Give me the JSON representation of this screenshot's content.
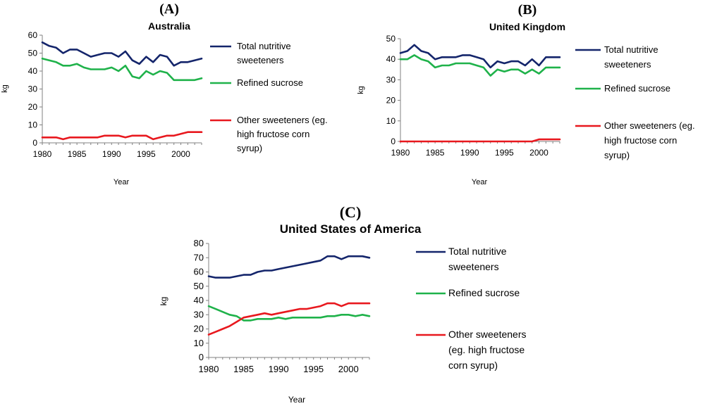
{
  "figure": {
    "panels": [
      {
        "letter_open": "(",
        "letter": "A",
        "letter_close": ")"
      },
      {
        "letter_open": "(",
        "letter": "B",
        "letter_close": ")"
      },
      {
        "letter_open": "(",
        "letter": "C",
        "letter_close": ")"
      }
    ]
  },
  "chart_data": [
    {
      "type": "line",
      "title": "Australia",
      "xlabel": "Year",
      "ylabel": "kg",
      "xlim": [
        1980,
        2003
      ],
      "ylim": [
        0,
        60
      ],
      "yticks": [
        0,
        10,
        20,
        30,
        40,
        50,
        60
      ],
      "xticks": [
        1980,
        1985,
        1990,
        1995,
        2000
      ],
      "x": [
        1980,
        1981,
        1982,
        1983,
        1984,
        1985,
        1986,
        1987,
        1988,
        1989,
        1990,
        1991,
        1992,
        1993,
        1994,
        1995,
        1996,
        1997,
        1998,
        1999,
        2000,
        2001,
        2002,
        2003
      ],
      "series": [
        {
          "name": "Total nutritive sweeteners",
          "legend_lines": [
            "Total nutritive",
            "sweeteners"
          ],
          "color": "#14256b",
          "values": [
            56,
            54,
            53,
            50,
            52,
            52,
            50,
            48,
            49,
            50,
            50,
            48,
            51,
            46,
            44,
            48,
            45,
            49,
            48,
            43,
            45,
            45,
            46,
            47
          ]
        },
        {
          "name": "Refined sucrose",
          "legend_lines": [
            "Refined sucrose"
          ],
          "color": "#1fb24a",
          "values": [
            47,
            46,
            45,
            43,
            43,
            44,
            42,
            41,
            41,
            41,
            42,
            40,
            43,
            37,
            36,
            40,
            38,
            40,
            39,
            35,
            35,
            35,
            35,
            36
          ]
        },
        {
          "name": "Other sweeteners (eg. high fructose corn syrup)",
          "legend_lines": [
            "Other sweeteners (eg.",
            "high fructose corn",
            "syrup)"
          ],
          "color": "#e8181e",
          "values": [
            3,
            3,
            3,
            2,
            3,
            3,
            3,
            3,
            3,
            4,
            4,
            4,
            3,
            4,
            4,
            4,
            2,
            3,
            4,
            4,
            5,
            6,
            6,
            6
          ]
        }
      ]
    },
    {
      "type": "line",
      "title": "United Kingdom",
      "xlabel": "Year",
      "ylabel": "kg",
      "xlim": [
        1980,
        2003
      ],
      "ylim": [
        0,
        50
      ],
      "yticks": [
        0,
        10,
        20,
        30,
        40,
        50
      ],
      "xticks": [
        1980,
        1985,
        1990,
        1995,
        2000
      ],
      "x": [
        1980,
        1981,
        1982,
        1983,
        1984,
        1985,
        1986,
        1987,
        1988,
        1989,
        1990,
        1991,
        1992,
        1993,
        1994,
        1995,
        1996,
        1997,
        1998,
        1999,
        2000,
        2001,
        2002,
        2003
      ],
      "series": [
        {
          "name": "Total nutritive sweeteners",
          "legend_lines": [
            "Total nutritive",
            "sweeteners"
          ],
          "color": "#14256b",
          "values": [
            43,
            44,
            47,
            44,
            43,
            40,
            41,
            41,
            41,
            42,
            42,
            41,
            40,
            36,
            39,
            38,
            39,
            39,
            37,
            40,
            37,
            41,
            41,
            41
          ]
        },
        {
          "name": "Refined sucrose",
          "legend_lines": [
            "Refined sucrose"
          ],
          "color": "#1fb24a",
          "values": [
            40,
            40,
            42,
            40,
            39,
            36,
            37,
            37,
            38,
            38,
            38,
            37,
            36,
            32,
            35,
            34,
            35,
            35,
            33,
            35,
            33,
            36,
            36,
            36
          ]
        },
        {
          "name": "Other sweeteners (eg. high fructose corn syrup)",
          "legend_lines": [
            "Other sweeteners (eg.",
            "high fructose corn",
            "syrup)"
          ],
          "color": "#e8181e",
          "values": [
            0,
            0,
            0,
            0,
            0,
            0,
            0,
            0,
            0,
            0,
            0,
            0,
            0,
            0,
            0,
            0,
            0,
            0,
            0,
            0,
            1,
            1,
            1,
            1
          ]
        }
      ]
    },
    {
      "type": "line",
      "title": "United States of America",
      "xlabel": "Year",
      "ylabel": "kg",
      "xlim": [
        1980,
        2003
      ],
      "ylim": [
        0,
        80
      ],
      "yticks": [
        0,
        10,
        20,
        30,
        40,
        50,
        60,
        70,
        80
      ],
      "xticks": [
        1980,
        1985,
        1990,
        1995,
        2000
      ],
      "x": [
        1980,
        1981,
        1982,
        1983,
        1984,
        1985,
        1986,
        1987,
        1988,
        1989,
        1990,
        1991,
        1992,
        1993,
        1994,
        1995,
        1996,
        1997,
        1998,
        1999,
        2000,
        2001,
        2002,
        2003
      ],
      "series": [
        {
          "name": "Total nutritive sweeteners",
          "legend_lines": [
            "Total nutritive",
            "sweeteners"
          ],
          "color": "#14256b",
          "values": [
            57,
            56,
            56,
            56,
            57,
            58,
            58,
            60,
            61,
            61,
            62,
            63,
            64,
            65,
            66,
            67,
            68,
            71,
            71,
            69,
            71,
            71,
            71,
            70
          ]
        },
        {
          "name": "Refined sucrose",
          "legend_lines": [
            "Refined sucrose"
          ],
          "color": "#1fb24a",
          "values": [
            36,
            34,
            32,
            30,
            29,
            26,
            26,
            27,
            27,
            27,
            28,
            27,
            28,
            28,
            28,
            28,
            28,
            29,
            29,
            30,
            30,
            29,
            30,
            29
          ]
        },
        {
          "name": "Other sweeteners (eg. high fructose corn syrup)",
          "legend_lines": [
            "Other sweeteners",
            "(eg. high fructose",
            "corn syrup)"
          ],
          "color": "#e8181e",
          "values": [
            16,
            18,
            20,
            22,
            25,
            28,
            29,
            30,
            31,
            30,
            31,
            32,
            33,
            34,
            34,
            35,
            36,
            38,
            38,
            36,
            38,
            38,
            38,
            38
          ]
        }
      ]
    }
  ]
}
